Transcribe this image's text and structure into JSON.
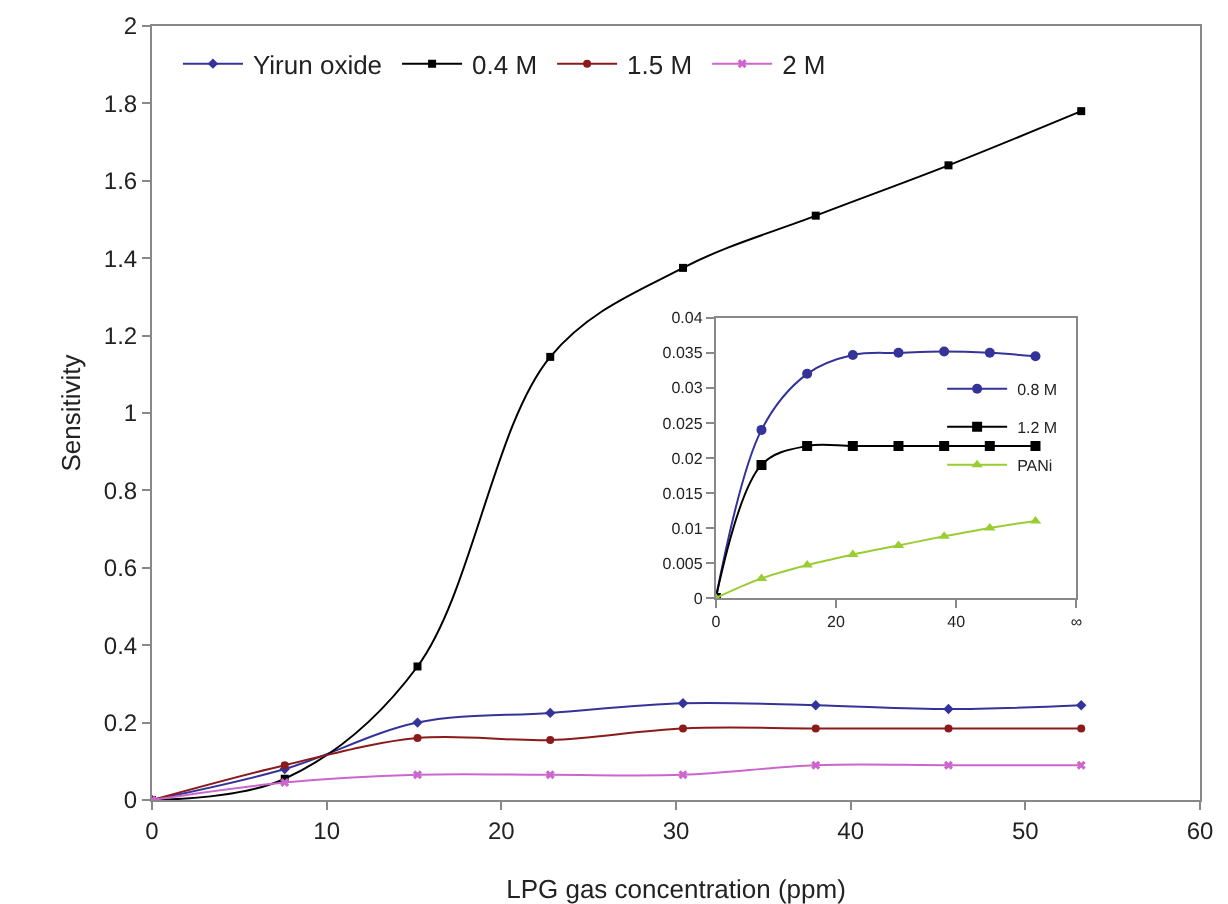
{
  "chart_data": [
    {
      "type": "line",
      "xlabel": "LPG gas concentration (ppm)",
      "ylabel": "Sensitivity",
      "x": [
        0,
        7.6,
        15.2,
        22.8,
        30.4,
        38,
        45.6,
        53.2
      ],
      "xlim": [
        0,
        60
      ],
      "xticks": [
        0,
        10,
        20,
        30,
        40,
        50,
        60
      ],
      "ylim": [
        0,
        2
      ],
      "yticks": [
        0,
        0.2,
        0.4,
        0.6,
        0.8,
        1,
        1.2,
        1.4,
        1.6,
        1.8,
        2
      ],
      "grid": false,
      "legend": "top left",
      "series": [
        {
          "name": "Yirun oxide",
          "color": "#333399",
          "marker": "diamond",
          "values": [
            0,
            0.08,
            0.2,
            0.225,
            0.25,
            0.245,
            0.235,
            0.245
          ]
        },
        {
          "name": "0.4 M",
          "color": "#000000",
          "marker": "square",
          "values": [
            0,
            0.055,
            0.345,
            1.145,
            1.375,
            1.51,
            1.64,
            1.78
          ]
        },
        {
          "name": "1.5 M",
          "color": "#8b1a1a",
          "marker": "circle",
          "values": [
            0,
            0.09,
            0.16,
            0.155,
            0.185,
            0.185,
            0.185,
            0.185
          ]
        },
        {
          "name": "2 M",
          "color": "#cc66cc",
          "marker": "cross",
          "values": [
            0,
            0.045,
            0.065,
            0.065,
            0.065,
            0.09,
            0.09,
            0.09
          ]
        }
      ]
    },
    {
      "type": "line",
      "x": [
        0,
        7.6,
        15.2,
        22.8,
        30.4,
        38,
        45.6,
        53.2
      ],
      "xlim": [
        0,
        60
      ],
      "xticks": [
        0,
        20,
        40,
        {
          "value": 60,
          "label": "∞"
        }
      ],
      "ylim": [
        0,
        0.04
      ],
      "yticks": [
        0,
        0.005,
        0.01,
        0.015,
        0.02,
        0.025,
        0.03,
        0.035,
        0.04
      ],
      "grid": false,
      "legend": "top right",
      "series": [
        {
          "name": "0.8 M",
          "color": "#333399",
          "marker": "circle",
          "values": [
            0,
            0.024,
            0.032,
            0.0347,
            0.035,
            0.0352,
            0.035,
            0.0345
          ]
        },
        {
          "name": "1.2 M",
          "color": "#000000",
          "marker": "square",
          "values": [
            0,
            0.019,
            0.0217,
            0.0217,
            0.0217,
            0.0217,
            0.0217,
            0.0217
          ]
        },
        {
          "name": "PANi",
          "color": "#9acd32",
          "marker": "triangle",
          "values": [
            0,
            0.0028,
            0.0047,
            0.0062,
            0.0075,
            0.0088,
            0.01,
            0.011
          ]
        }
      ]
    }
  ]
}
